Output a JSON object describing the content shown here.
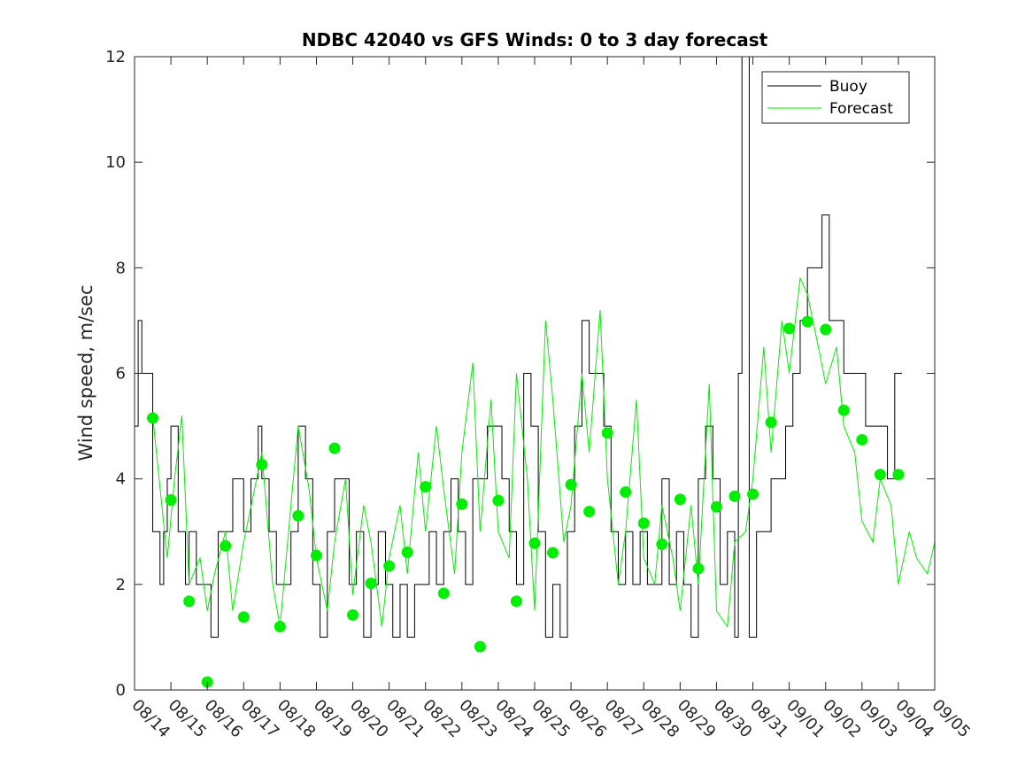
{
  "chart_data": {
    "type": "line",
    "title": "NDBC 42040 vs GFS Winds: 0 to 3 day forecast",
    "xlabel": "",
    "ylabel": "Wind speed, m/sec",
    "xlim": [
      0,
      22
    ],
    "ylim": [
      0,
      12
    ],
    "x_tick_labels": [
      "08/14",
      "08/15",
      "08/16",
      "08/17",
      "08/18",
      "08/19",
      "08/20",
      "08/21",
      "08/22",
      "08/23",
      "08/24",
      "08/25",
      "08/26",
      "08/27",
      "08/28",
      "08/29",
      "08/30",
      "08/31",
      "09/01",
      "09/02",
      "09/03",
      "09/04",
      "09/05"
    ],
    "y_ticks": [
      0,
      2,
      4,
      6,
      8,
      10,
      12
    ],
    "legend": {
      "placement": "top-right",
      "entries": [
        "Buoy",
        "Forecast"
      ]
    },
    "colors": {
      "buoy": "#000000",
      "forecast": "#00ee00",
      "markers": "#00ee00",
      "axes": "#262626"
    },
    "series": [
      {
        "name": "Buoy",
        "x": [
          0.0,
          0.1,
          0.2,
          0.3,
          0.5,
          0.7,
          0.8,
          0.9,
          1.0,
          1.2,
          1.4,
          1.5,
          1.7,
          1.9,
          2.1,
          2.3,
          2.5,
          2.7,
          2.9,
          3.0,
          3.2,
          3.4,
          3.5,
          3.7,
          3.9,
          4.1,
          4.3,
          4.5,
          4.7,
          4.9,
          5.1,
          5.3,
          5.5,
          5.7,
          5.9,
          6.1,
          6.3,
          6.5,
          6.7,
          6.9,
          7.1,
          7.3,
          7.5,
          7.7,
          7.9,
          8.1,
          8.3,
          8.5,
          8.7,
          8.9,
          9.1,
          9.3,
          9.5,
          9.7,
          9.9,
          10.1,
          10.3,
          10.5,
          10.7,
          10.9,
          11.1,
          11.3,
          11.5,
          11.7,
          11.9,
          12.1,
          12.3,
          12.5,
          12.7,
          12.9,
          13.1,
          13.3,
          13.5,
          13.7,
          13.9,
          14.1,
          14.3,
          14.5,
          14.7,
          14.9,
          15.1,
          15.3,
          15.5,
          15.7,
          15.9,
          16.1,
          16.3,
          16.5,
          16.6,
          16.7,
          16.9,
          17.1,
          17.3,
          17.5,
          17.7,
          17.9,
          18.1,
          18.3,
          18.5,
          18.7,
          18.9,
          19.1,
          19.3,
          19.5,
          19.7,
          19.9,
          20.1,
          20.3,
          20.5,
          20.7,
          20.9,
          21.1
        ],
        "values": [
          5,
          7,
          6,
          6,
          3,
          2,
          3,
          4,
          5,
          3,
          2,
          3,
          2,
          2,
          1,
          3,
          3,
          4,
          4,
          3,
          4,
          5,
          4,
          3,
          2,
          2,
          3,
          5,
          4,
          2,
          1,
          3,
          4,
          4,
          2,
          3,
          1,
          2,
          3,
          2,
          1,
          2,
          1,
          2,
          2,
          3,
          2,
          3,
          4,
          3,
          2,
          4,
          4,
          5,
          5,
          4,
          3,
          2,
          6,
          5,
          3,
          1,
          2,
          1,
          3,
          5,
          7,
          6,
          6,
          5,
          3,
          2,
          3,
          2,
          3,
          2,
          2,
          4,
          2,
          3,
          2,
          1,
          4,
          5,
          4,
          2,
          3,
          1,
          6,
          12,
          1,
          3,
          3,
          4,
          4,
          5,
          6,
          7,
          8,
          8,
          9,
          7,
          7,
          6,
          6,
          6,
          5,
          5,
          5,
          4,
          6,
          6
        ]
      },
      {
        "name": "Forecast",
        "x": [
          0.5,
          0.6,
          0.9,
          1.1,
          1.3,
          1.5,
          1.8,
          2.0,
          2.2,
          2.5,
          2.7,
          3.0,
          3.3,
          3.5,
          3.8,
          4.0,
          4.3,
          4.5,
          4.8,
          5.0,
          5.3,
          5.5,
          5.8,
          6.0,
          6.3,
          6.5,
          6.8,
          7.0,
          7.3,
          7.5,
          7.8,
          8.0,
          8.3,
          8.5,
          8.8,
          9.0,
          9.3,
          9.5,
          9.8,
          10.0,
          10.3,
          10.5,
          10.8,
          11.0,
          11.3,
          11.5,
          11.8,
          12.0,
          12.3,
          12.5,
          12.8,
          13.0,
          13.3,
          13.5,
          13.8,
          14.0,
          14.3,
          14.5,
          14.8,
          15.0,
          15.3,
          15.5,
          15.8,
          16.0,
          16.3,
          16.5,
          16.8,
          17.0,
          17.3,
          17.5,
          17.8,
          18.0,
          18.3,
          18.5,
          18.8,
          19.0,
          19.3,
          19.5,
          19.8,
          20.0,
          20.3,
          20.5,
          20.8,
          21.0,
          21.3,
          21.5,
          21.8,
          22.0
        ],
        "values": [
          5.2,
          4.5,
          2.5,
          4.0,
          5.2,
          2.0,
          2.5,
          1.5,
          2.2,
          3.0,
          1.5,
          2.8,
          3.8,
          4.5,
          2.0,
          1.2,
          3.5,
          5.0,
          3.8,
          2.5,
          1.5,
          2.8,
          4.0,
          1.8,
          3.5,
          2.8,
          1.2,
          2.5,
          3.5,
          2.2,
          4.5,
          3.0,
          5.0,
          3.8,
          2.2,
          4.5,
          6.2,
          3.0,
          5.5,
          3.0,
          2.5,
          6.0,
          4.0,
          1.5,
          7.0,
          5.5,
          2.8,
          3.5,
          6.0,
          4.5,
          7.2,
          4.0,
          2.0,
          3.0,
          5.5,
          2.5,
          2.0,
          3.5,
          2.5,
          1.5,
          3.5,
          2.0,
          5.8,
          1.5,
          1.2,
          2.8,
          3.0,
          4.0,
          6.5,
          4.5,
          7.0,
          6.0,
          7.8,
          7.5,
          6.5,
          5.8,
          6.5,
          5.0,
          4.5,
          3.2,
          2.8,
          4.0,
          3.5,
          2.0,
          3.0,
          2.5,
          2.2,
          2.8
        ]
      },
      {
        "name": "Forecast markers",
        "x": [
          0.5,
          1.0,
          1.5,
          2.0,
          2.5,
          3.0,
          3.5,
          4.0,
          4.5,
          5.0,
          5.5,
          6.0,
          6.5,
          7.0,
          7.5,
          8.0,
          8.5,
          9.0,
          9.5,
          10.0,
          10.5,
          11.0,
          11.5,
          12.0,
          12.5,
          13.0,
          13.5,
          14.0,
          14.5,
          15.0,
          15.5,
          16.0,
          16.5,
          17.0,
          17.5,
          18.0,
          18.5,
          19.0,
          19.5,
          20.0,
          20.5,
          21.0
        ],
        "values": [
          5.15,
          3.6,
          1.68,
          0.15,
          2.73,
          1.38,
          4.27,
          1.2,
          3.3,
          2.55,
          4.58,
          1.42,
          2.02,
          2.35,
          2.61,
          3.85,
          1.83,
          3.52,
          0.82,
          3.59,
          1.68,
          2.78,
          2.6,
          3.89,
          3.38,
          4.87,
          3.75,
          3.16,
          2.76,
          3.61,
          2.3,
          3.47,
          3.67,
          3.71,
          5.07,
          6.85,
          6.98,
          6.83,
          5.3,
          4.74,
          4.08,
          4.08
        ]
      }
    ]
  }
}
